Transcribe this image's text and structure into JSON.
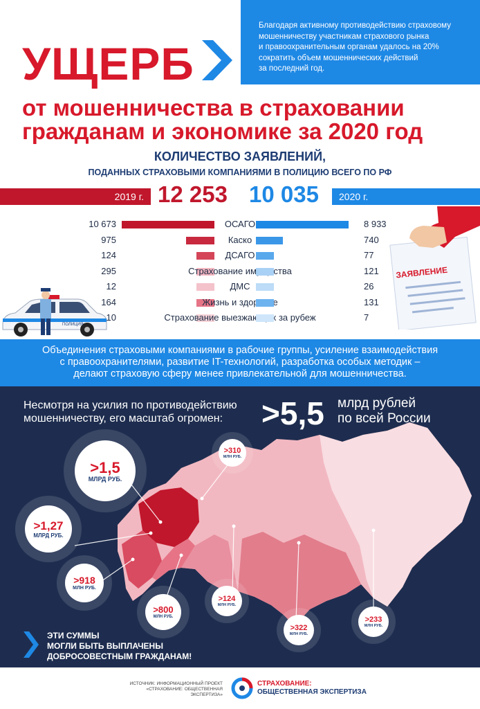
{
  "header": {
    "title": "УЩЕРБ",
    "subtitle_line1": "от мошенничества в страховании",
    "subtitle_line2": "гражданам и экономике за 2020 год",
    "info_lines": [
      "Благодаря активному противодействию страховому",
      "мошенничеству участникам страхового рынка",
      "и правоохранительным органам удалось на 20%",
      "сократить объем мошеннических действий",
      "за последний год."
    ]
  },
  "colors": {
    "red": "#d7192b",
    "dark_red": "#c0172c",
    "blue": "#1e88e5",
    "navy": "#1e2d4f"
  },
  "counts": {
    "heading_line1": "КОЛИЧЕСТВО ЗАЯВЛЕНИЙ,",
    "heading_line2": "ПОДАННЫХ СТРАХОВЫМИ КОМПАНИЯМИ В ПОЛИЦИЮ ВСЕГО ПО РФ",
    "year_left": "2019 г.",
    "year_right": "2020 г.",
    "total_left": "12 253",
    "total_right": "10 035"
  },
  "chart_data": {
    "type": "bar",
    "categories": [
      "ОСАГО",
      "Каско",
      "ДСАГО",
      "Страхование имущества",
      "ДМС",
      "Жизнь и здоровье",
      "Страхование выезжающих за рубеж"
    ],
    "series": [
      {
        "name": "2019 г.",
        "values": [
          10673,
          975,
          124,
          295,
          12,
          164,
          10
        ],
        "labels": [
          "10 673",
          "975",
          "124",
          "295",
          "12",
          "164",
          "10"
        ]
      },
      {
        "name": "2020 г.",
        "values": [
          8933,
          740,
          77,
          121,
          26,
          131,
          7
        ],
        "labels": [
          "8 933",
          "740",
          "77",
          "121",
          "26",
          "131",
          "7"
        ]
      }
    ]
  },
  "illustration": {
    "form_label": "ЗАЯВЛЕНИЕ",
    "car_label": "ПОЛИЦИЯ"
  },
  "banner": {
    "lines": [
      "Объединения страховыми компаниями в рабочие группы, усиление взаимодействия",
      "с правоохранителями, развитие IT-технологий, разработка особых методик –",
      "делают страховую сферу менее привлекательной для мошенничества."
    ]
  },
  "map": {
    "intro_line1": "Несмотря на усилия по противодействию",
    "intro_line2": "мошенничеству, его масштаб огромен:",
    "total_value": ">5,5",
    "total_unit_line1": "млрд рублей",
    "total_unit_line2": "по всей России",
    "bubbles": [
      {
        "value": ">1,5",
        "unit": "МЛРД РУБ."
      },
      {
        "value": ">1,27",
        "unit": "МЛРД РУБ."
      },
      {
        "value": ">918",
        "unit": "МЛН РУБ."
      },
      {
        "value": ">800",
        "unit": "МЛН РУБ."
      },
      {
        "value": ">310",
        "unit": "МЛН РУБ."
      },
      {
        "value": ">124",
        "unit": "МЛН РУБ."
      },
      {
        "value": ">322",
        "unit": "МЛН РУБ."
      },
      {
        "value": ">233",
        "unit": "МЛН РУБ."
      }
    ],
    "payout_lines": [
      "ЭТИ СУММЫ",
      "МОГЛИ БЫТЬ ВЫПЛАЧЕНЫ",
      "ДОБРОСОВЕСТНЫМ ГРАЖДАНАМ!"
    ]
  },
  "footer": {
    "source_line1": "ИСТОЧНИК: ИНФОРМАЦИОННЫЙ ПРОЕКТ",
    "source_line2": "«СТРАХОВАНИЕ: ОБЩЕСТВЕННАЯ ЭКСПЕРТИЗА»",
    "brand_line1": "СТРАХОВАНИЕ:",
    "brand_line2": "ОБЩЕСТВЕННАЯ ЭКСПЕРТИЗА"
  }
}
